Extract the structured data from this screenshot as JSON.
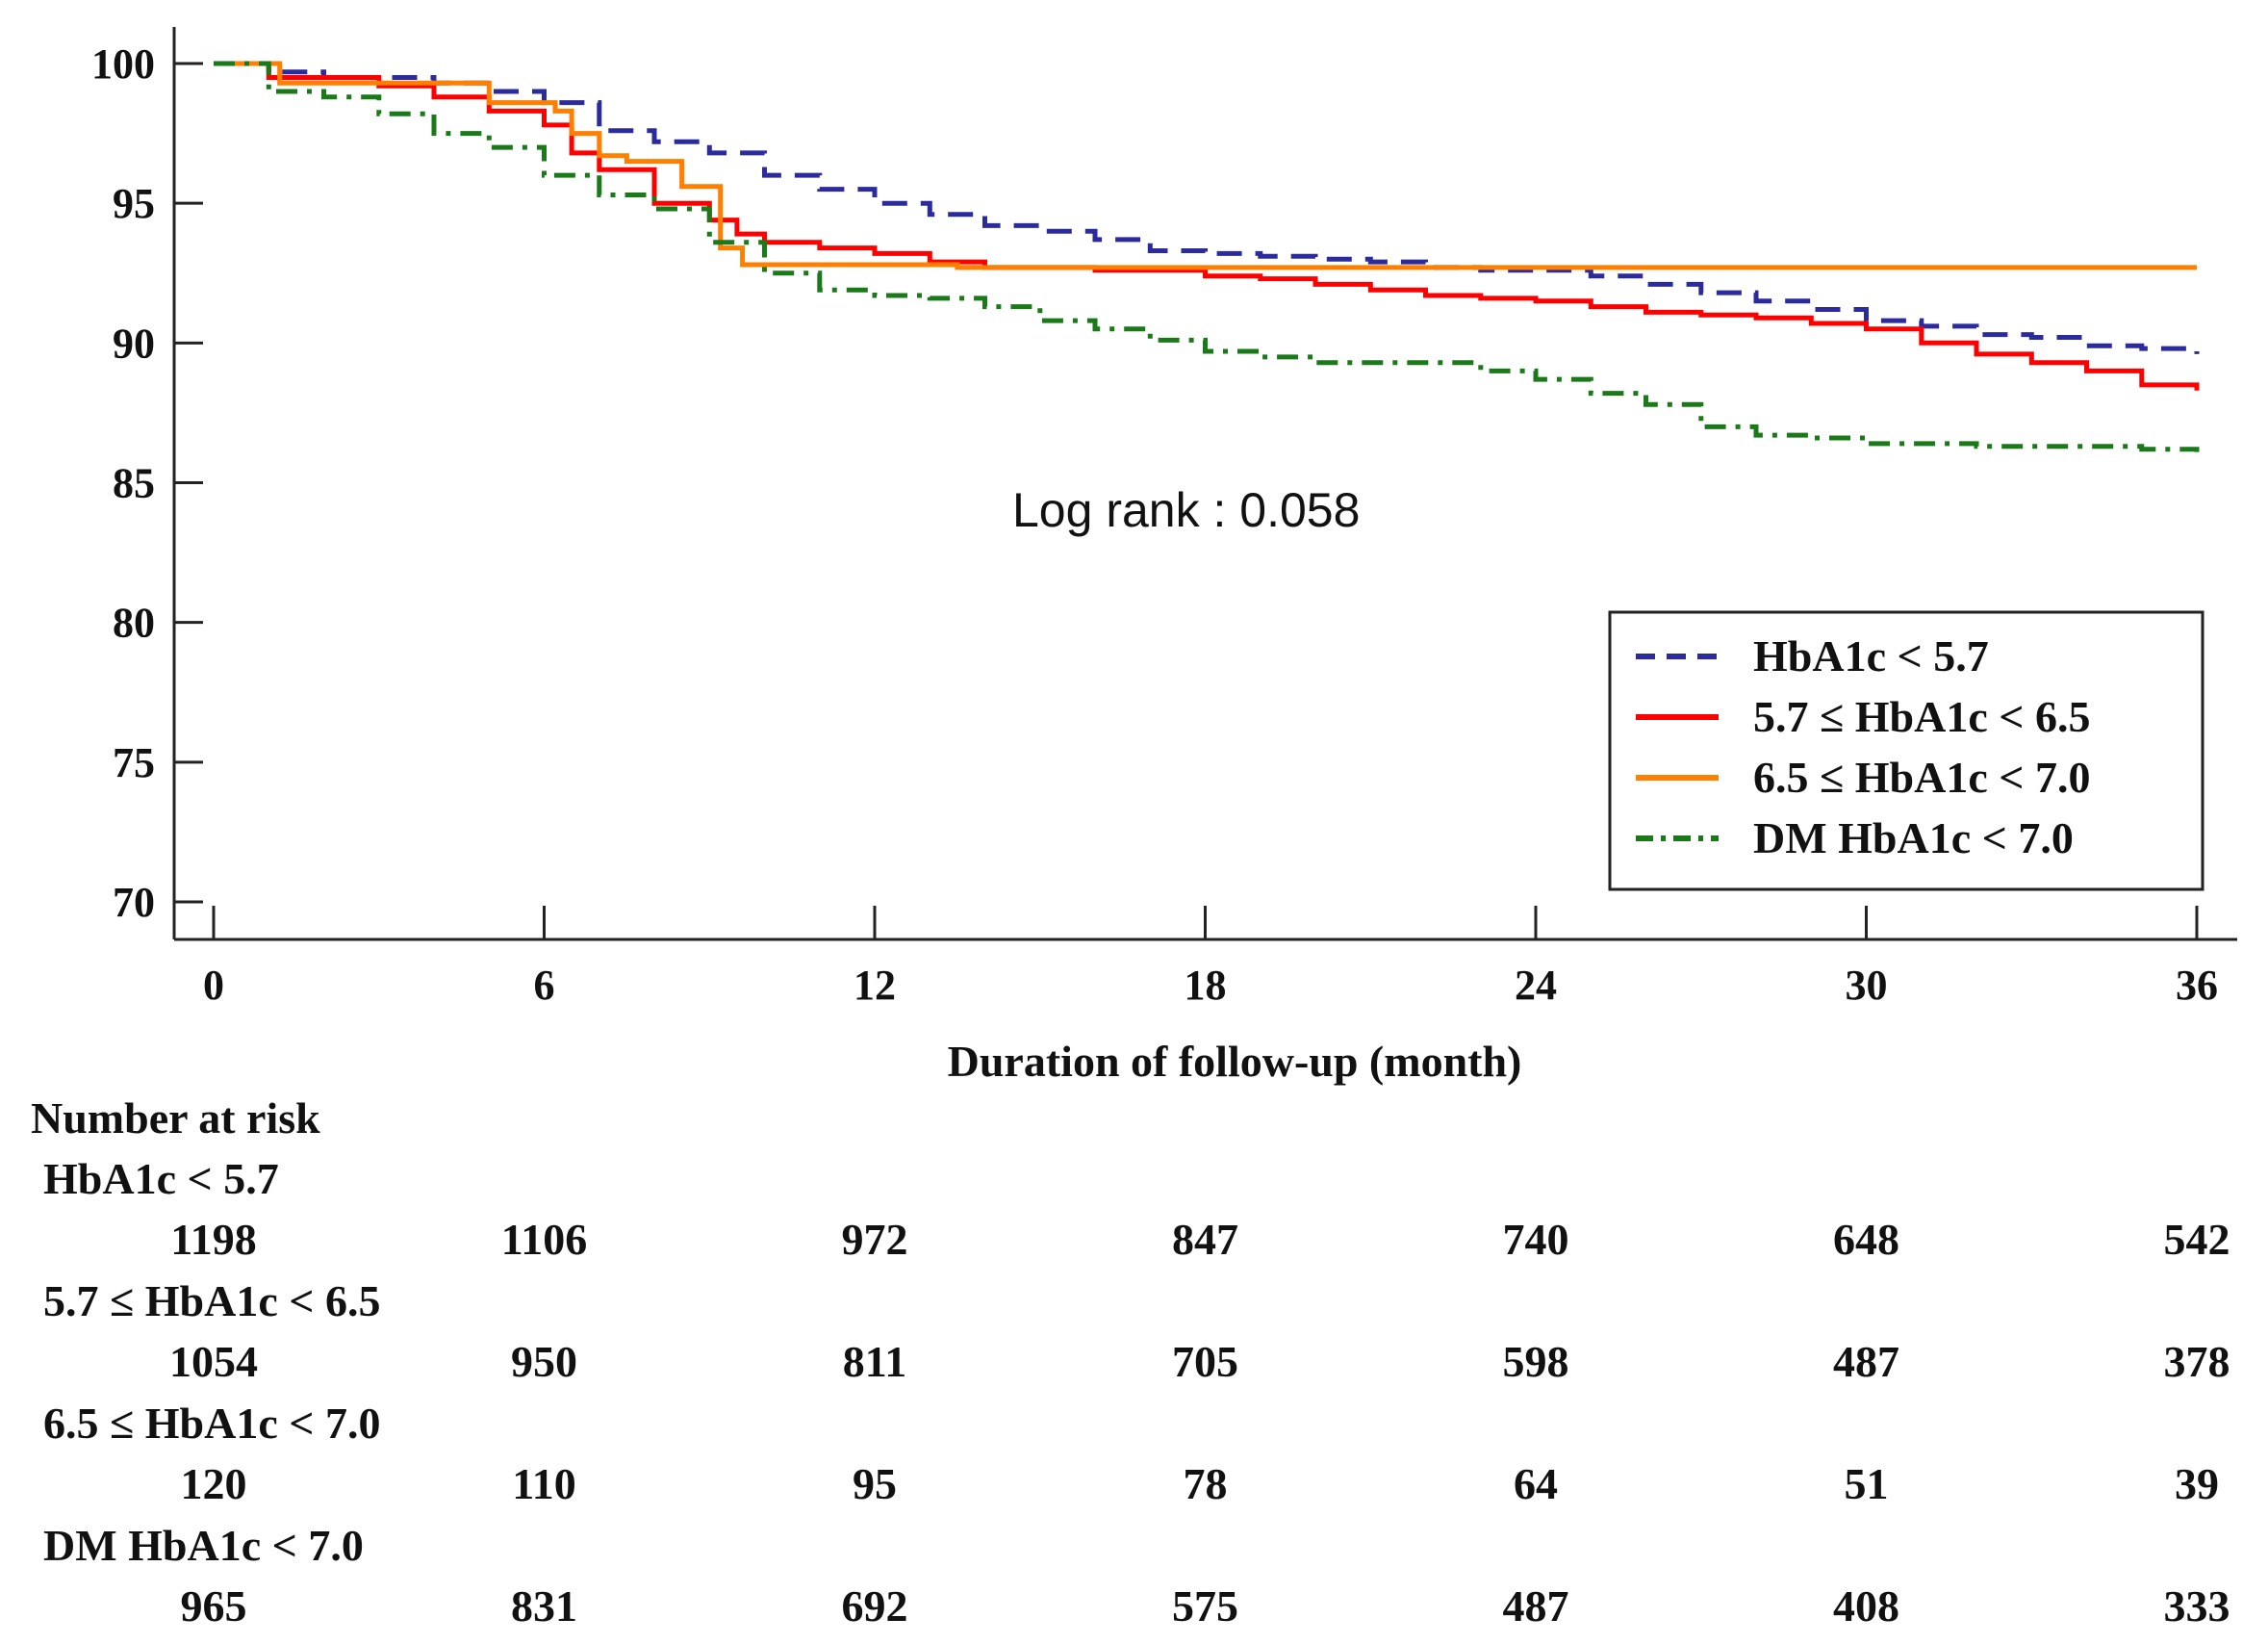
{
  "chart_data": {
    "type": "line",
    "xlabel": "Duration of follow-up (month)",
    "ylabel": "",
    "xlim": [
      0,
      36
    ],
    "ylim": [
      70,
      100
    ],
    "xticks": [
      0,
      6,
      12,
      18,
      24,
      30,
      36
    ],
    "yticks": [
      100,
      95,
      90,
      85,
      80,
      75,
      70
    ],
    "annotation": "Log rank : 0.058",
    "legend_position": "bottom-right",
    "grid": false,
    "series": [
      {
        "name": "HbA1c < 5.7",
        "color": "#2b2b9e",
        "style": "dashed",
        "x": [
          0,
          1,
          2,
          4,
          5,
          6,
          7,
          8,
          9,
          10,
          11,
          12,
          13,
          14,
          15,
          16,
          17,
          18,
          19,
          20,
          21,
          22,
          23,
          24,
          25,
          26,
          27,
          28,
          29,
          30,
          31,
          32,
          33,
          34,
          35,
          36
        ],
        "y": [
          100,
          99.7,
          99.5,
          99.3,
          99.0,
          98.6,
          97.6,
          97.2,
          96.8,
          96.0,
          95.5,
          95.0,
          94.6,
          94.2,
          94.0,
          93.7,
          93.3,
          93.2,
          93.1,
          93.0,
          92.9,
          92.7,
          92.6,
          92.6,
          92.4,
          92.1,
          91.8,
          91.5,
          91.2,
          90.8,
          90.6,
          90.3,
          90.2,
          89.9,
          89.8,
          89.6
        ]
      },
      {
        "name": "5.7 ≤ HbA1c < 6.5",
        "color": "#ff0000",
        "style": "solid",
        "x": [
          0,
          1,
          3,
          4,
          5,
          6,
          6.5,
          7,
          8,
          9,
          9.5,
          10,
          11,
          12,
          13,
          14,
          16,
          18,
          19,
          20,
          21,
          22,
          23,
          24,
          25,
          26,
          27,
          28,
          29,
          30,
          31,
          32,
          33,
          34,
          35,
          36
        ],
        "y": [
          100,
          99.5,
          99.2,
          98.8,
          98.3,
          97.8,
          96.8,
          96.2,
          95.0,
          94.4,
          93.9,
          93.6,
          93.4,
          93.2,
          92.9,
          92.7,
          92.6,
          92.4,
          92.3,
          92.1,
          91.9,
          91.7,
          91.6,
          91.5,
          91.3,
          91.1,
          91.0,
          90.9,
          90.7,
          90.5,
          90.0,
          89.6,
          89.3,
          89.0,
          88.5,
          88.3
        ]
      },
      {
        "name": "6.5 ≤ HbA1c < 7.0",
        "color": "#ff7f00",
        "style": "solid",
        "x": [
          0,
          1,
          1.2,
          4.5,
          5,
          6.2,
          6.5,
          7.0,
          7.5,
          8.5,
          9.2,
          9.6,
          11,
          13.5,
          36
        ],
        "y": [
          100,
          100,
          99.3,
          99.3,
          98.6,
          98.3,
          97.5,
          96.7,
          96.5,
          95.6,
          93.4,
          92.8,
          92.8,
          92.7,
          92.7
        ]
      },
      {
        "name": "DM HbA1c < 7.0",
        "color": "#1a7a1a",
        "style": "dashdot",
        "x": [
          0,
          1,
          2,
          3,
          4,
          5,
          6,
          7,
          8,
          9,
          10,
          11,
          12,
          13,
          14,
          15,
          16,
          17,
          18,
          19,
          20,
          21,
          22,
          23,
          24,
          25,
          26,
          27,
          28,
          29,
          30,
          31,
          32,
          33,
          34,
          35,
          36
        ],
        "y": [
          100,
          99.0,
          98.8,
          98.2,
          97.5,
          97.0,
          96.0,
          95.3,
          94.8,
          93.6,
          92.5,
          91.9,
          91.7,
          91.6,
          91.3,
          90.8,
          90.5,
          90.1,
          89.7,
          89.5,
          89.3,
          89.3,
          89.3,
          89.0,
          88.7,
          88.2,
          87.8,
          87.0,
          86.7,
          86.6,
          86.4,
          86.4,
          86.3,
          86.3,
          86.3,
          86.2,
          86.1
        ]
      }
    ],
    "risk_table": {
      "title": "Number at risk",
      "groups": [
        {
          "label": "HbA1c < 5.7",
          "values": [
            1198,
            1106,
            972,
            847,
            740,
            648,
            542
          ]
        },
        {
          "label": "5.7 ≤ HbA1c < 6.5",
          "values": [
            1054,
            950,
            811,
            705,
            598,
            487,
            378
          ]
        },
        {
          "label": "6.5 ≤ HbA1c < 7.0",
          "values": [
            120,
            110,
            95,
            78,
            64,
            51,
            39
          ]
        },
        {
          "label": "DM HbA1c < 7.0",
          "values": [
            965,
            831,
            692,
            575,
            487,
            408,
            333
          ]
        }
      ]
    }
  }
}
